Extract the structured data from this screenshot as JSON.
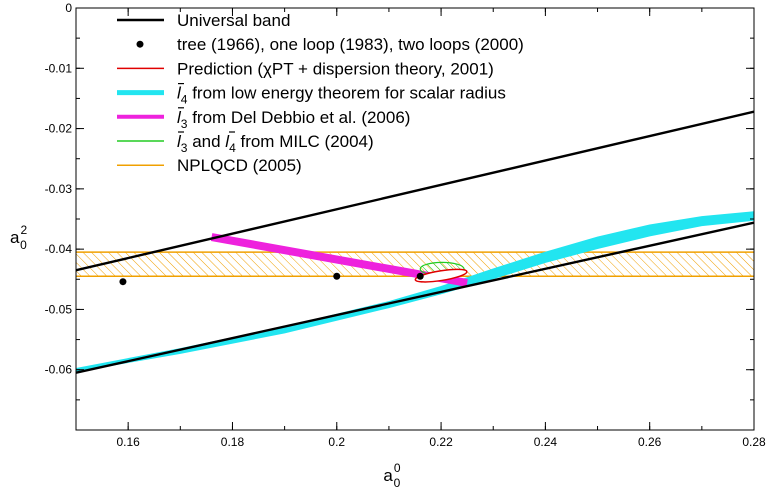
{
  "chart_data": {
    "type": "line",
    "title": "",
    "xlabel": "a",
    "xlabel_sup": "0",
    "xlabel_sub": "0",
    "ylabel": "a",
    "ylabel_sup": "2",
    "ylabel_sub": "0",
    "xlim": [
      0.15,
      0.28
    ],
    "ylim": [
      -0.07,
      0
    ],
    "x_ticks": [
      0.16,
      0.18,
      0.2,
      0.22,
      0.24,
      0.26,
      0.28
    ],
    "x_tick_labels": [
      "0.16",
      "0.18",
      "0.2",
      "0.22",
      "0.24",
      "0.26",
      "0.28"
    ],
    "y_ticks": [
      0,
      -0.01,
      -0.02,
      -0.03,
      -0.04,
      -0.05,
      -0.06
    ],
    "y_tick_labels": [
      "0",
      "-0.01",
      "-0.02",
      "-0.03",
      "-0.04",
      "-0.05",
      "-0.06"
    ],
    "grid": false,
    "legend_placement": "top-left",
    "series": [
      {
        "name": "Universal band",
        "kind": "band-edges",
        "color": "#000000",
        "lines": [
          {
            "x": [
              0.15,
              0.28
            ],
            "y": [
              -0.0435,
              -0.0172
            ]
          },
          {
            "x": [
              0.15,
              0.28
            ],
            "y": [
              -0.0605,
              -0.0356
            ]
          }
        ]
      },
      {
        "name": "tree (1966), one loop (1983), two loops (2000)",
        "kind": "points",
        "color": "#000000",
        "x": [
          0.159,
          0.2,
          0.216
        ],
        "y": [
          -0.0454,
          -0.0445,
          -0.0445
        ]
      },
      {
        "name": "Prediction (χPT + dispersion theory, 2001)",
        "kind": "ellipse",
        "color": "#e00000",
        "center": [
          0.22,
          -0.0444
        ],
        "radii": [
          0.005,
          0.0008
        ],
        "angle_deg": -9
      },
      {
        "name_parts": [
          "l",
          "4",
          " from low energy theorem for scalar radius"
        ],
        "kind": "curve-band",
        "color": "#22e5f0",
        "x": [
          0.15,
          0.17,
          0.19,
          0.21,
          0.22,
          0.23,
          0.24,
          0.25,
          0.26,
          0.27,
          0.28
        ],
        "y_low": [
          -0.0603,
          -0.0573,
          -0.0539,
          -0.0497,
          -0.0474,
          -0.0449,
          -0.0422,
          -0.0399,
          -0.0378,
          -0.0361,
          -0.0352
        ],
        "y_high": [
          -0.0598,
          -0.0565,
          -0.0529,
          -0.0487,
          -0.0462,
          -0.0433,
          -0.0405,
          -0.038,
          -0.036,
          -0.0346,
          -0.0338
        ]
      },
      {
        "name_parts": [
          "l",
          "3",
          " from Del Debbio et al. (2006)"
        ],
        "kind": "thick-line",
        "color": "#ee22dd",
        "x": [
          0.176,
          0.225
        ],
        "y": [
          -0.038,
          -0.0456
        ]
      },
      {
        "name_parts": [
          "l",
          "3",
          " and ",
          "l",
          "4",
          " from MILC (2004)"
        ],
        "kind": "hatched-ellipse",
        "color": "#22cc22",
        "center": [
          0.2202,
          -0.0433
        ],
        "radii": [
          0.0042,
          0.0011
        ],
        "angle_deg": 0
      },
      {
        "name": "NPLQCD (2005)",
        "kind": "hatched-band",
        "color": "#f0a000",
        "y": [
          -0.0445,
          -0.0405
        ],
        "x": [
          0.15,
          0.28
        ]
      }
    ]
  }
}
